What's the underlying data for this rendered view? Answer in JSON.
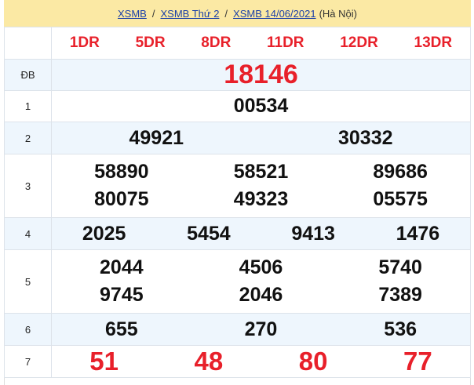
{
  "breadcrumb": {
    "items": [
      "XSMB",
      "XSMB Thứ 2",
      "XSMB 14/06/2021"
    ],
    "suffix": "(Hà Nội)"
  },
  "codes": [
    "1DR",
    "5DR",
    "8DR",
    "11DR",
    "12DR",
    "13DR"
  ],
  "prizes": [
    {
      "label": "ĐB",
      "numbers": [
        "18146"
      ]
    },
    {
      "label": "1",
      "numbers": [
        "00534"
      ]
    },
    {
      "label": "2",
      "numbers": [
        "49921",
        "30332"
      ]
    },
    {
      "label": "3",
      "numbers": [
        "58890",
        "58521",
        "89686",
        "80075",
        "49323",
        "05575"
      ]
    },
    {
      "label": "4",
      "numbers": [
        "2025",
        "5454",
        "9413",
        "1476"
      ]
    },
    {
      "label": "5",
      "numbers": [
        "2044",
        "4506",
        "5740",
        "9745",
        "2046",
        "7389"
      ]
    },
    {
      "label": "6",
      "numbers": [
        "655",
        "270",
        "536"
      ]
    },
    {
      "label": "7",
      "numbers": [
        "51",
        "48",
        "80",
        "77"
      ]
    }
  ],
  "colors": {
    "accent_red": "#e8202a",
    "header_bg": "#fbe9a4",
    "alt_row_bg": "#eef6fd",
    "link": "#1a3fa8"
  }
}
